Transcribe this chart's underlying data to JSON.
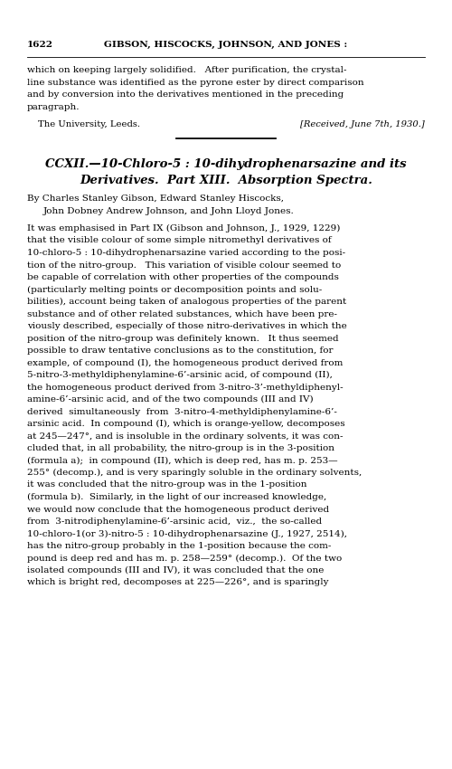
{
  "background_color": "#ffffff",
  "page_width": 5.0,
  "page_height": 8.5,
  "dpi": 100,
  "header_number": "1622",
  "header_center": "GIBSON, HISCOCKS, JOHNSON, AND JONES :",
  "intro_lines": [
    "which on keeping largely solidified.   After purification, the crystal-",
    "line substance was identified as the pyrone ester by direct comparison",
    "and by conversion into the derivatives mentioned in the preceding",
    "paragraph."
  ],
  "university_left": "The University, Leeds.",
  "university_right": "[Received, June 7th, 1930.]",
  "title_line1": "CCXII.—10-Chloro-5 : 10-dihydrophenarsazine and its",
  "title_line2": "Derivatives.  Part XIII.  Absorption Spectra.",
  "authors_line1": "By Charles Stanley Gibson, Edward Stanley Hiscocks,",
  "authors_line2": "John Dobney Andrew Johnson, and John Lloyd Jones.",
  "body_lines": [
    "It was emphasised in Part IX (Gibson and Johnson, J., 1929, 1229)",
    "that the visible colour of some simple nitromethyl derivatives of",
    "10-chloro-5 : 10-dihydrophenarsazine varied according to the posi-",
    "tion of the nitro-group.   This variation of visible colour seemed to",
    "be capable of correlation with other properties of the compounds",
    "(particularly melting points or decomposition points and solu-",
    "bilities), account being taken of analogous properties of the parent",
    "substance and of other related substances, which have been pre-",
    "viously described, especially of those nitro-derivatives in which the",
    "position of the nitro-group was definitely known.   It thus seemed",
    "possible to draw tentative conclusions as to the constitution, for",
    "example, of compound (I), the homogeneous product derived from",
    "5-nitro-3-methyldiphenylamine-6’-arsinic acid, of compound (II),",
    "the homogeneous product derived from 3-nitro-3’-methyldiphenyl-",
    "amine-6’-arsinic acid, and of the two compounds (III and IV)",
    "derived  simultaneously  from  3-nitro-4-methyldiphenylamine-6’-",
    "arsinic acid.  In compound (I), which is orange-yellow, decomposes",
    "at 245—247°, and is insoluble in the ordinary solvents, it was con-",
    "cluded that, in all probability, the nitro-group is in the 3-position",
    "(formula a);  in compound (II), which is deep red, has m. p. 253—",
    "255° (decomp.), and is very sparingly soluble in the ordinary solvents,",
    "it was concluded that the nitro-group was in the 1-position",
    "(formula b).  Similarly, in the light of our increased knowledge,",
    "we would now conclude that the homogeneous product derived",
    "from  3-nitrodiphenylamine-6’-arsinic acid,  viz.,  the so-called",
    "10-chloro-1(or 3)-nitro-5 : 10-dihydrophenarsazine (J., 1927, 2514),",
    "has the nitro-group probably in the 1-position because the com-",
    "pound is deep red and has m. p. 258—259° (decomp.).  Of the two",
    "isolated compounds (III and IV), it was concluded that the one",
    "which is bright red, decomposes at 225—226°, and is sparingly"
  ]
}
